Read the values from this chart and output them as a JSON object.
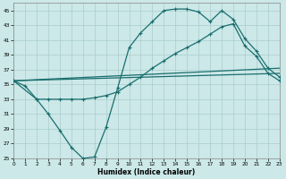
{
  "xlabel": "Humidex (Indice chaleur)",
  "bg_color": "#cce8e8",
  "grid_color": "#aacccc",
  "line_color": "#1a6e6e",
  "xlim": [
    0,
    23
  ],
  "ylim": [
    25,
    46
  ],
  "xtick_vals": [
    0,
    1,
    2,
    3,
    4,
    5,
    6,
    7,
    8,
    9,
    10,
    11,
    12,
    13,
    14,
    15,
    16,
    17,
    18,
    19,
    20,
    21,
    22,
    23
  ],
  "ytick_vals": [
    25,
    27,
    29,
    31,
    33,
    35,
    37,
    39,
    41,
    43,
    45
  ],
  "curve1_x": [
    0,
    1,
    2,
    3,
    4,
    5,
    6,
    7,
    8,
    9,
    10,
    11,
    12,
    13,
    14,
    15,
    16,
    17,
    18,
    19,
    20,
    21,
    22,
    23
  ],
  "curve1_y": [
    35.5,
    34.8,
    33.0,
    31.0,
    28.8,
    26.5,
    25.0,
    25.2,
    29.2,
    34.5,
    40.0,
    42.0,
    43.5,
    45.0,
    45.2,
    45.2,
    44.8,
    43.5,
    45.0,
    43.8,
    41.2,
    39.5,
    37.2,
    36.0
  ],
  "curve2_x": [
    0,
    2,
    3,
    4,
    5,
    6,
    7,
    8,
    9,
    10,
    11,
    12,
    13,
    14,
    15,
    16,
    17,
    18,
    19,
    20,
    21,
    22,
    23
  ],
  "curve2_y": [
    35.5,
    33.0,
    33.0,
    33.0,
    33.0,
    33.0,
    33.2,
    33.5,
    34.0,
    35.0,
    36.0,
    37.2,
    38.2,
    39.2,
    40.0,
    40.8,
    41.8,
    42.8,
    43.2,
    40.2,
    38.8,
    36.5,
    35.5
  ],
  "line3_x": [
    0,
    23
  ],
  "line3_y": [
    35.5,
    36.5
  ],
  "line4_x": [
    0,
    23
  ],
  "line4_y": [
    35.5,
    37.2
  ]
}
